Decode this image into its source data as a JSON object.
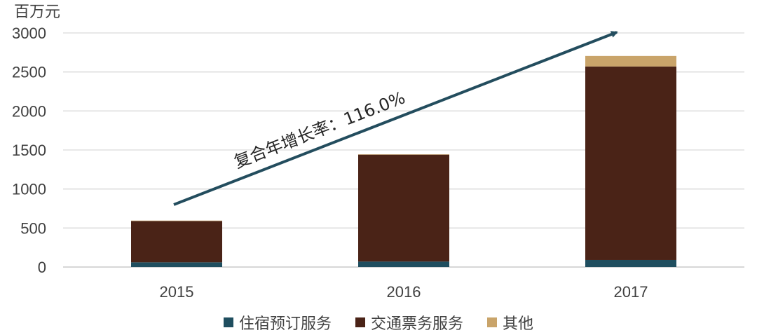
{
  "chart_data": {
    "type": "bar",
    "stacked": true,
    "unit_label": "百万元",
    "categories": [
      "2015",
      "2016",
      "2017"
    ],
    "y_ticks": [
      "0",
      "500",
      "1000",
      "1500",
      "2000",
      "2500",
      "3000"
    ],
    "ylim": [
      0,
      3000
    ],
    "grid": true,
    "legend_position": "bottom",
    "series": [
      {
        "name": "住宿预订服务",
        "color": "#1f4e5f",
        "values": [
          60,
          70,
          90
        ]
      },
      {
        "name": "交通票务服务",
        "color": "#4a2317",
        "values": [
          530,
          1370,
          2480
        ]
      },
      {
        "name": "其他",
        "color": "#c9a46a",
        "values": [
          5,
          5,
          135
        ]
      }
    ],
    "annotation": {
      "text": "复合年增长率：116.0%"
    }
  }
}
